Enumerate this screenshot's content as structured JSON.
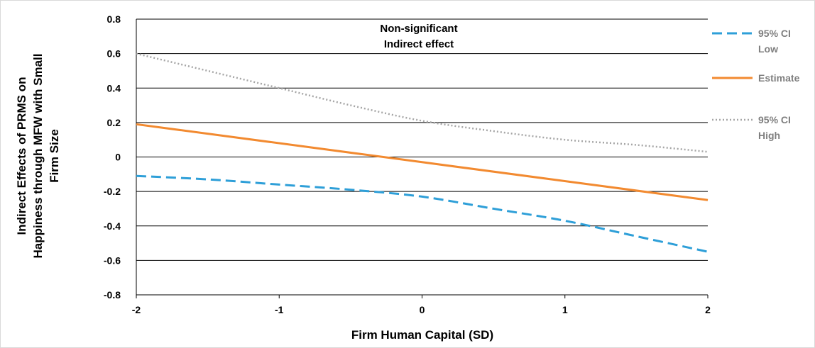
{
  "chart_data": {
    "type": "line",
    "xlabel": "Firm Human Capital (SD)",
    "ylabel_lines": [
      "Indirect Effects of PRMS on",
      "Happiness through MFW with Small",
      "Firm Size"
    ],
    "annotation_lines": [
      "Non-significant",
      "Indirect effect"
    ],
    "xlim": [
      -2,
      2
    ],
    "ylim": [
      -0.8,
      0.8
    ],
    "x_ticks": [
      {
        "value": -2,
        "label": "-2"
      },
      {
        "value": -1,
        "label": "-1"
      },
      {
        "value": 0,
        "label": "0"
      },
      {
        "value": 1,
        "label": "1"
      },
      {
        "value": 2,
        "label": "2"
      }
    ],
    "y_ticks": [
      {
        "value": 0.8,
        "label": "0.8"
      },
      {
        "value": 0.6,
        "label": "0.6"
      },
      {
        "value": 0.4,
        "label": "0.4"
      },
      {
        "value": 0.2,
        "label": "0.2"
      },
      {
        "value": 0,
        "label": "0"
      },
      {
        "value": -0.2,
        "label": "-0.2"
      },
      {
        "value": -0.4,
        "label": "-0.4"
      },
      {
        "value": -0.6,
        "label": "-0.6"
      },
      {
        "value": -0.8,
        "label": "-0.8"
      }
    ],
    "grid": "horizontal",
    "legend_position": "right",
    "series": [
      {
        "name_lines": [
          "95% CI",
          "Low"
        ],
        "color": "#2e9fd8",
        "style": "dashed",
        "x": [
          -2,
          -1.5,
          -1,
          -0.5,
          0,
          0.5,
          1,
          1.5,
          2
        ],
        "y": [
          -0.11,
          -0.13,
          -0.16,
          -0.19,
          -0.23,
          -0.3,
          -0.37,
          -0.46,
          -0.55
        ]
      },
      {
        "name_lines": [
          "Estimate"
        ],
        "color": "#f28a30",
        "style": "solid",
        "x": [
          -2,
          2
        ],
        "y": [
          0.19,
          -0.25
        ]
      },
      {
        "name_lines": [
          "95% CI",
          "High"
        ],
        "color": "#a6a6a6",
        "style": "dotted",
        "x": [
          -2,
          -1.5,
          -1,
          -0.5,
          0,
          0.5,
          1,
          1.5,
          2
        ],
        "y": [
          0.6,
          0.5,
          0.4,
          0.3,
          0.21,
          0.15,
          0.1,
          0.07,
          0.03
        ]
      }
    ]
  }
}
